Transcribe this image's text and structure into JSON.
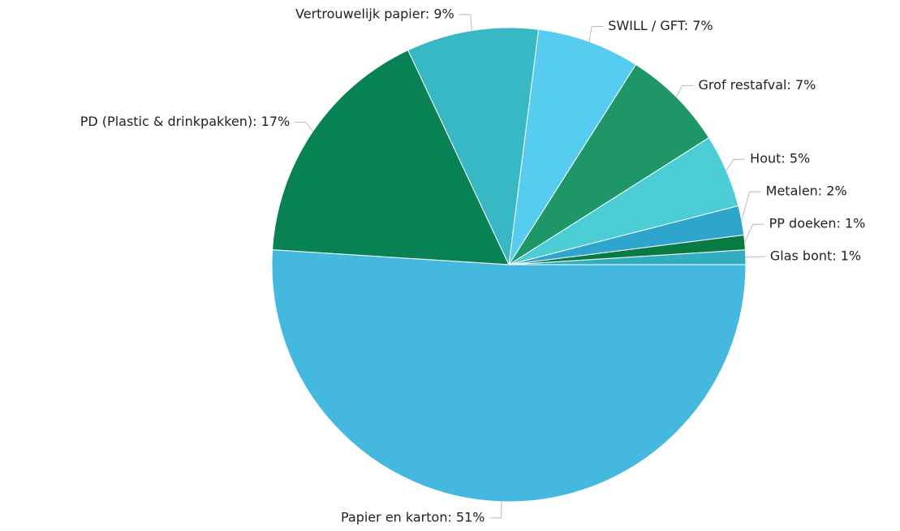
{
  "chart_data": {
    "type": "pie",
    "categories": [
      "Glas bont",
      "PP doeken",
      "Metalen",
      "Hout",
      "Grof restafval",
      "SWILL / GFT",
      "Vertrouwelijk papier",
      "PD (Plastic & drinkpakken)",
      "Papier en karton"
    ],
    "values": [
      1,
      1,
      2,
      5,
      7,
      7,
      9,
      17,
      51
    ],
    "value_labels": [
      "Glas bont: 1%",
      "PP doeken: 1%",
      "Metalen: 2%",
      "Hout: 5%",
      "Grof restafval: 7%",
      "SWILL / GFT: 7%",
      "Vertrouwelijk papier: 9%",
      "PD (Plastic & drinkpakken): 17%",
      "Papier en karton: 51%"
    ],
    "colors": [
      "#33aebf",
      "#0a7a45",
      "#2ea5cc",
      "#4ccdd6",
      "#1e9668",
      "#56cdf0",
      "#38b8c4",
      "#088254",
      "#45b8df"
    ]
  }
}
